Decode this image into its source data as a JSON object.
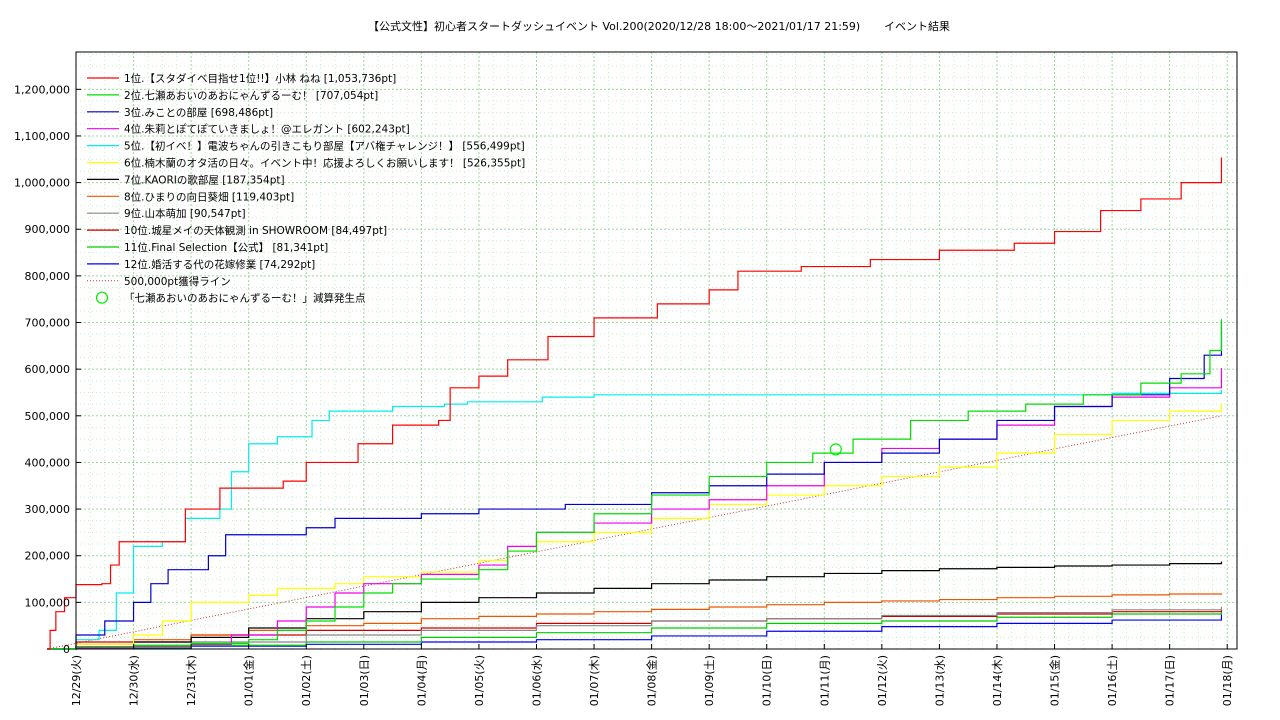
{
  "chart_data": {
    "type": "line",
    "title": "【公式文性】初心者スタートダッシュイベント Vol.200(2020/12/28 18:00〜2021/01/17 21:59)",
    "title_suffix": "イベント結果",
    "xlabel": "",
    "ylabel": "",
    "ylim": [
      0,
      1280000
    ],
    "y_ticks": [
      0,
      100000,
      200000,
      300000,
      400000,
      500000,
      600000,
      700000,
      800000,
      900000,
      1000000,
      1100000,
      1200000
    ],
    "y_tick_labels": [
      "0",
      "100,000",
      "200,000",
      "300,000",
      "400,000",
      "500,000",
      "600,000",
      "700,000",
      "800,000",
      "900,000",
      "1,000,000",
      "1,100,000",
      "1,200,000"
    ],
    "x_range": [
      0,
      20.17
    ],
    "x_ticks": [
      0,
      1,
      2,
      3,
      4,
      5,
      6,
      7,
      8,
      9,
      10,
      11,
      12,
      13,
      14,
      15,
      16,
      17,
      18,
      19,
      20
    ],
    "x_tick_labels": [
      "12/29(火)",
      "12/30(水)",
      "12/31(木)",
      "01/01(金)",
      "01/02(土)",
      "01/03(日)",
      "01/04(月)",
      "01/05(火)",
      "01/06(水)",
      "01/07(木)",
      "01/08(金)",
      "01/09(土)",
      "01/10(日)",
      "01/11(月)",
      "01/12(火)",
      "01/13(水)",
      "01/14(木)",
      "01/15(金)",
      "01/16(土)",
      "01/17(日)",
      "01/18(月)"
    ],
    "grid": true,
    "legend_position": "top-left",
    "series": [
      {
        "name": "1位.【スタダイベ目指せ1位!!】小林 ねね [1,053,736pt]",
        "color": "#ff0000",
        "points": [
          [
            -0.5,
            0
          ],
          [
            -0.45,
            40000
          ],
          [
            -0.35,
            80000
          ],
          [
            -0.2,
            110000
          ],
          [
            0,
            138000
          ],
          [
            0.45,
            140000
          ],
          [
            0.6,
            180000
          ],
          [
            0.75,
            230000
          ],
          [
            1.9,
            300000
          ],
          [
            2.5,
            345000
          ],
          [
            3.6,
            360000
          ],
          [
            4.0,
            400000
          ],
          [
            4.9,
            440000
          ],
          [
            5.5,
            480000
          ],
          [
            6.3,
            490000
          ],
          [
            6.5,
            560000
          ],
          [
            7.0,
            585000
          ],
          [
            7.5,
            620000
          ],
          [
            8.2,
            670000
          ],
          [
            9.0,
            710000
          ],
          [
            10.1,
            740000
          ],
          [
            11.0,
            770000
          ],
          [
            11.5,
            810000
          ],
          [
            12.6,
            820000
          ],
          [
            13.8,
            835000
          ],
          [
            15.0,
            855000
          ],
          [
            16.3,
            870000
          ],
          [
            17.0,
            895000
          ],
          [
            17.8,
            940000
          ],
          [
            18.5,
            965000
          ],
          [
            19.2,
            1000000
          ],
          [
            19.9,
            1053736
          ]
        ]
      },
      {
        "name": "2位.七瀬あおいのあおにゃんずるーむ！ [707,054pt]",
        "color": "#00dd00",
        "points": [
          [
            -0.5,
            0
          ],
          [
            0,
            5000
          ],
          [
            1,
            8000
          ],
          [
            2,
            12000
          ],
          [
            3,
            20000
          ],
          [
            3.5,
            40000
          ],
          [
            4,
            60000
          ],
          [
            4.5,
            90000
          ],
          [
            5,
            120000
          ],
          [
            5.5,
            140000
          ],
          [
            6,
            150000
          ],
          [
            7,
            170000
          ],
          [
            7.5,
            210000
          ],
          [
            8,
            250000
          ],
          [
            9,
            290000
          ],
          [
            10,
            330000
          ],
          [
            11,
            370000
          ],
          [
            12,
            400000
          ],
          [
            12.8,
            420000
          ],
          [
            13.5,
            450000
          ],
          [
            14.5,
            490000
          ],
          [
            15.5,
            510000
          ],
          [
            16.5,
            525000
          ],
          [
            17.5,
            545000
          ],
          [
            18.5,
            570000
          ],
          [
            19.2,
            590000
          ],
          [
            19.7,
            640000
          ],
          [
            19.9,
            707054
          ]
        ]
      },
      {
        "name": "3位.みことの部屋 [698,486pt]",
        "color": "#0000cc",
        "points": [
          [
            -0.5,
            0
          ],
          [
            0,
            30000
          ],
          [
            0.5,
            60000
          ],
          [
            1,
            100000
          ],
          [
            1.3,
            140000
          ],
          [
            1.6,
            170000
          ],
          [
            2.3,
            200000
          ],
          [
            2.6,
            245000
          ],
          [
            4,
            260000
          ],
          [
            4.5,
            280000
          ],
          [
            6,
            290000
          ],
          [
            7,
            300000
          ],
          [
            8.5,
            310000
          ],
          [
            10,
            335000
          ],
          [
            11,
            350000
          ],
          [
            12,
            375000
          ],
          [
            13,
            400000
          ],
          [
            14,
            420000
          ],
          [
            15,
            450000
          ],
          [
            16,
            490000
          ],
          [
            17,
            520000
          ],
          [
            18,
            545000
          ],
          [
            19,
            580000
          ],
          [
            19.6,
            630000
          ],
          [
            19.9,
            698486
          ]
        ]
      },
      {
        "name": "4位.朱莉とぽてぽていきましょ！@エレガント [602,243pt]",
        "color": "#ee00ee",
        "points": [
          [
            -0.5,
            0
          ],
          [
            0,
            3000
          ],
          [
            1,
            6000
          ],
          [
            2,
            10000
          ],
          [
            2.7,
            30000
          ],
          [
            3.5,
            60000
          ],
          [
            4,
            90000
          ],
          [
            4.5,
            120000
          ],
          [
            5,
            140000
          ],
          [
            6,
            160000
          ],
          [
            7,
            180000
          ],
          [
            7.5,
            220000
          ],
          [
            8,
            250000
          ],
          [
            9,
            270000
          ],
          [
            10,
            300000
          ],
          [
            11,
            320000
          ],
          [
            12,
            350000
          ],
          [
            13,
            400000
          ],
          [
            14,
            430000
          ],
          [
            15,
            450000
          ],
          [
            16,
            480000
          ],
          [
            17,
            520000
          ],
          [
            18,
            540000
          ],
          [
            19,
            560000
          ],
          [
            19.9,
            602243
          ]
        ]
      },
      {
        "name": "5位.【初イベ！】電波ちゃんの引きこもり部屋【アバ権チャレンジ！】 [556,499pt]",
        "color": "#00eeee",
        "points": [
          [
            -0.5,
            0
          ],
          [
            0,
            20000
          ],
          [
            0.4,
            40000
          ],
          [
            0.7,
            120000
          ],
          [
            1,
            220000
          ],
          [
            1.5,
            230000
          ],
          [
            1.9,
            280000
          ],
          [
            2.5,
            300000
          ],
          [
            2.7,
            380000
          ],
          [
            3,
            440000
          ],
          [
            3.5,
            455000
          ],
          [
            4.1,
            490000
          ],
          [
            4.4,
            510000
          ],
          [
            5.5,
            520000
          ],
          [
            6.4,
            525000
          ],
          [
            6.8,
            530000
          ],
          [
            8.1,
            540000
          ],
          [
            9,
            545000
          ],
          [
            12,
            545000
          ],
          [
            15,
            545000
          ],
          [
            18,
            548000
          ],
          [
            19.9,
            556499
          ]
        ]
      },
      {
        "name": "6位.楠木蘭のオタ活の日々。イベント中！応援よろしくお願いします！ [526,355pt]",
        "color": "#ffff00",
        "points": [
          [
            -0.5,
            0
          ],
          [
            0,
            10000
          ],
          [
            1,
            30000
          ],
          [
            1.5,
            60000
          ],
          [
            2,
            100000
          ],
          [
            3,
            115000
          ],
          [
            3.5,
            130000
          ],
          [
            4.5,
            140000
          ],
          [
            5,
            155000
          ],
          [
            6,
            165000
          ],
          [
            7,
            190000
          ],
          [
            7.5,
            210000
          ],
          [
            8,
            230000
          ],
          [
            9,
            250000
          ],
          [
            10,
            280000
          ],
          [
            11,
            310000
          ],
          [
            12,
            330000
          ],
          [
            13,
            350000
          ],
          [
            14,
            370000
          ],
          [
            15,
            390000
          ],
          [
            16,
            420000
          ],
          [
            17,
            460000
          ],
          [
            18,
            490000
          ],
          [
            19,
            510000
          ],
          [
            19.9,
            526355
          ]
        ]
      },
      {
        "name": "7位.KAORIの歌部屋 [187,354pt]",
        "color": "#000000",
        "points": [
          [
            -0.5,
            0
          ],
          [
            0,
            5000
          ],
          [
            1,
            15000
          ],
          [
            2,
            25000
          ],
          [
            3,
            45000
          ],
          [
            4,
            65000
          ],
          [
            5,
            80000
          ],
          [
            6,
            100000
          ],
          [
            7,
            110000
          ],
          [
            8,
            120000
          ],
          [
            9,
            130000
          ],
          [
            10,
            140000
          ],
          [
            11,
            148000
          ],
          [
            12,
            155000
          ],
          [
            13,
            162000
          ],
          [
            14,
            168000
          ],
          [
            15,
            172000
          ],
          [
            16,
            175000
          ],
          [
            17,
            178000
          ],
          [
            18,
            180000
          ],
          [
            19,
            183000
          ],
          [
            19.9,
            187354
          ]
        ]
      },
      {
        "name": "8位.ひまりの向日葵畑 [119,403pt]",
        "color": "#ee5500",
        "points": [
          [
            -0.5,
            0
          ],
          [
            0,
            10000
          ],
          [
            1,
            20000
          ],
          [
            2,
            30000
          ],
          [
            3,
            40000
          ],
          [
            4,
            50000
          ],
          [
            5,
            55000
          ],
          [
            6,
            65000
          ],
          [
            7,
            70000
          ],
          [
            8,
            75000
          ],
          [
            9,
            80000
          ],
          [
            10,
            85000
          ],
          [
            11,
            90000
          ],
          [
            12,
            95000
          ],
          [
            13,
            100000
          ],
          [
            14,
            103000
          ],
          [
            15,
            106000
          ],
          [
            16,
            110000
          ],
          [
            17,
            113000
          ],
          [
            18,
            116000
          ],
          [
            19,
            118000
          ],
          [
            19.9,
            119403
          ]
        ]
      },
      {
        "name": "9位.山本萌加 [90,547pt]",
        "color": "#888888",
        "points": [
          [
            -0.5,
            0
          ],
          [
            0,
            5000
          ],
          [
            2,
            15000
          ],
          [
            4,
            30000
          ],
          [
            6,
            40000
          ],
          [
            8,
            50000
          ],
          [
            10,
            60000
          ],
          [
            12,
            65000
          ],
          [
            14,
            72000
          ],
          [
            16,
            78000
          ],
          [
            18,
            84000
          ],
          [
            19.9,
            90547
          ]
        ]
      },
      {
        "name": "10位.城星メイの天体観測 in SHOWROOM [84,497pt]",
        "color": "#cc0000",
        "points": [
          [
            -0.5,
            0
          ],
          [
            0,
            15000
          ],
          [
            2,
            30000
          ],
          [
            4,
            40000
          ],
          [
            6,
            45000
          ],
          [
            8,
            55000
          ],
          [
            10,
            60000
          ],
          [
            12,
            65000
          ],
          [
            14,
            70000
          ],
          [
            16,
            75000
          ],
          [
            18,
            80000
          ],
          [
            19.9,
            84497
          ]
        ]
      },
      {
        "name": "11位.Final Selection【公式】 [81,341pt]",
        "color": "#00cc00",
        "points": [
          [
            -0.5,
            0
          ],
          [
            0,
            3000
          ],
          [
            2,
            8000
          ],
          [
            4,
            15000
          ],
          [
            6,
            25000
          ],
          [
            8,
            35000
          ],
          [
            10,
            45000
          ],
          [
            12,
            55000
          ],
          [
            14,
            60000
          ],
          [
            16,
            68000
          ],
          [
            18,
            75000
          ],
          [
            19.9,
            81341
          ]
        ]
      },
      {
        "name": "12位.婚活する代の花嫁修業 [74,292pt]",
        "color": "#0000ff",
        "points": [
          [
            -0.5,
            0
          ],
          [
            0,
            2000
          ],
          [
            2,
            6000
          ],
          [
            4,
            10000
          ],
          [
            6,
            15000
          ],
          [
            8,
            20000
          ],
          [
            10,
            28000
          ],
          [
            12,
            38000
          ],
          [
            14,
            48000
          ],
          [
            16,
            55000
          ],
          [
            18,
            62000
          ],
          [
            19.9,
            74292
          ]
        ]
      }
    ],
    "reference_line": {
      "name": "500,000pt獲得ライン",
      "color": "#cc3333",
      "points": [
        [
          -0.5,
          0
        ],
        [
          19.9,
          500000
        ]
      ]
    },
    "marker": {
      "name": "「七瀬あおいのあおにゃんずるーむ！」減算発生点",
      "color": "#00ee00",
      "x": 13.2,
      "y": 428000
    }
  }
}
